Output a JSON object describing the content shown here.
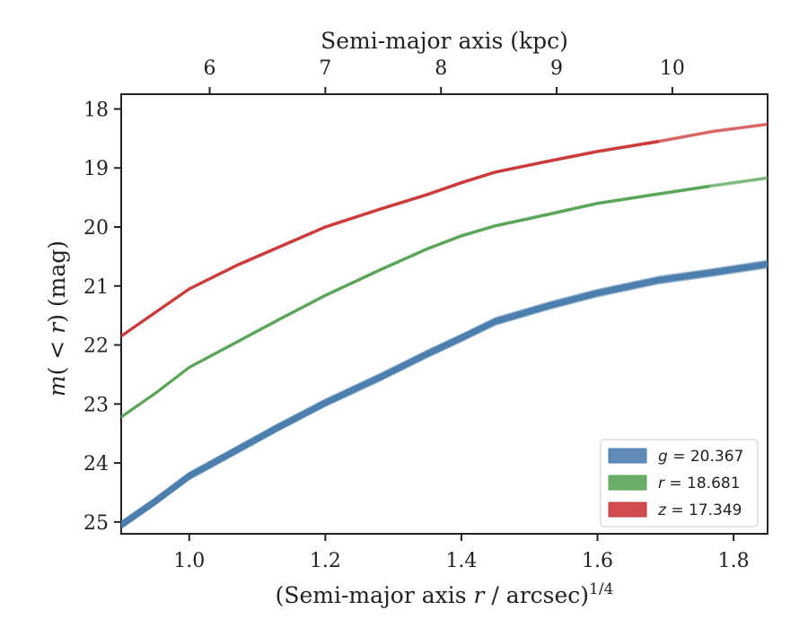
{
  "chart_data": {
    "type": "line",
    "xlabel": "(Semi-major axis r / arcsec)^{1/4}",
    "xlabel_parts": {
      "main": "(Semi-major axis ",
      "italic": "r",
      "rest": " / arcsec)",
      "sup": "1/4"
    },
    "ylabel": "m(<r) (mag)",
    "ylabel_parts": {
      "m": "m",
      "paren_open": "(",
      "lt": " < ",
      "r": "r",
      "paren_close": ")",
      "unit": " (mag)"
    },
    "top_xlabel": "Semi-major axis (kpc)",
    "xlim": [
      0.9,
      1.85
    ],
    "ylim": [
      25.2,
      17.75
    ],
    "y_inverted": true,
    "x_ticks": [
      "1.0",
      "1.2",
      "1.4",
      "1.6",
      "1.8"
    ],
    "y_ticks": [
      "18",
      "19",
      "20",
      "21",
      "22",
      "23",
      "24",
      "25"
    ],
    "top_ticks": [
      {
        "label": "6",
        "x": 1.03
      },
      {
        "label": "7",
        "x": 1.2
      },
      {
        "label": "8",
        "x": 1.37
      },
      {
        "label": "9",
        "x": 1.54
      },
      {
        "label": "10",
        "x": 1.71
      }
    ],
    "legend_position": "lower-right",
    "grid": false,
    "series": [
      {
        "name": "g = 20.367",
        "legend": {
          "var": "g",
          "value": "20.367"
        },
        "color": "#4c7fae",
        "band_width": 0.15,
        "x": [
          0.9,
          0.95,
          1.0,
          1.07,
          1.13,
          1.2,
          1.28,
          1.35,
          1.4,
          1.45,
          1.53,
          1.6,
          1.69,
          1.77,
          1.85
        ],
        "y": [
          25.05,
          24.65,
          24.22,
          23.78,
          23.4,
          22.98,
          22.55,
          22.15,
          21.88,
          21.6,
          21.33,
          21.12,
          20.9,
          20.77,
          20.63
        ],
        "solid_until": 1.85
      },
      {
        "name": "r = 18.681",
        "legend": {
          "var": "r",
          "value": "18.681"
        },
        "color": "#5aa55a",
        "band_width": 0.06,
        "x": [
          0.9,
          0.95,
          1.0,
          1.07,
          1.13,
          1.2,
          1.28,
          1.35,
          1.4,
          1.45,
          1.53,
          1.6,
          1.69,
          1.77,
          1.85
        ],
        "y": [
          23.22,
          22.82,
          22.38,
          21.95,
          21.58,
          21.16,
          20.73,
          20.37,
          20.15,
          19.98,
          19.78,
          19.6,
          19.44,
          19.3,
          19.17
        ],
        "solid_until": 1.765
      },
      {
        "name": "z = 17.349",
        "legend": {
          "var": "z",
          "value": "17.349"
        },
        "color": "#cc3a3a",
        "band_width": 0.06,
        "x": [
          0.9,
          0.95,
          1.0,
          1.07,
          1.13,
          1.2,
          1.28,
          1.35,
          1.4,
          1.45,
          1.53,
          1.6,
          1.69,
          1.77,
          1.85
        ],
        "y": [
          21.85,
          21.45,
          21.05,
          20.65,
          20.35,
          20.0,
          19.7,
          19.45,
          19.25,
          19.07,
          18.88,
          18.72,
          18.55,
          18.38,
          18.26
        ],
        "solid_until": 1.69
      }
    ]
  }
}
